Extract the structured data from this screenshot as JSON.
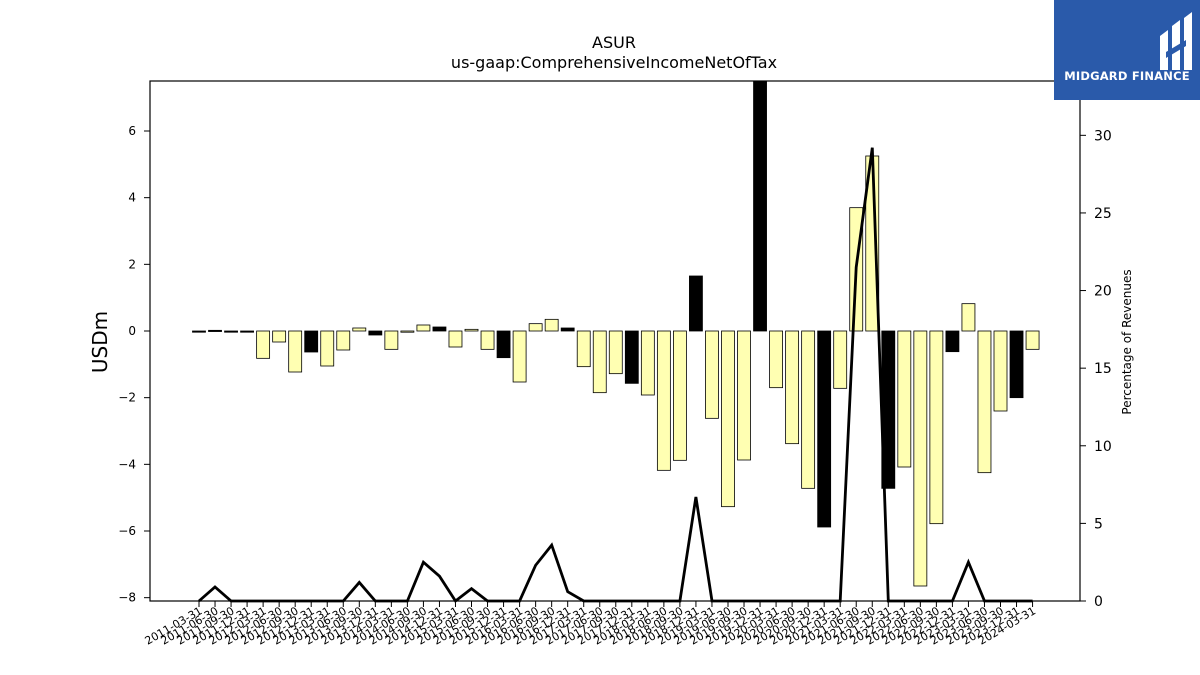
{
  "brand": {
    "name": "MIDGARD FINANCE",
    "color": "#2a5aaa"
  },
  "chart_data": {
    "type": "bar",
    "title": "ASUR",
    "subtitle": "us-gaap:ComprehensiveIncomeNetOfTax",
    "ylabel": "USDm",
    "y2label": "Percentage of Revenues",
    "ylim": [
      -8.1,
      7.5
    ],
    "y2lim": [
      0,
      33.5
    ],
    "yticks": [
      -8,
      -6,
      -4,
      -2,
      0,
      2,
      4,
      6
    ],
    "y2ticks": [
      0,
      5,
      10,
      15,
      20,
      25,
      30
    ],
    "grid": false,
    "colors": {
      "positive_year": "#ffffb2",
      "highlight": "#000000",
      "line": "#000000"
    },
    "categories": [
      "2011-03-31",
      "2011-06-30",
      "2011-09-30",
      "2011-12-31",
      "2012-03-31",
      "2012-06-30",
      "2012-09-30",
      "2012-12-31",
      "2013-03-31",
      "2013-06-30",
      "2013-09-30",
      "2013-12-31",
      "2014-03-31",
      "2014-06-30",
      "2014-09-30",
      "2014-12-31",
      "2015-03-31",
      "2015-06-30",
      "2015-09-30",
      "2015-12-31",
      "2016-03-31",
      "2016-06-30",
      "2016-09-30",
      "2016-12-31",
      "2017-03-31",
      "2017-06-30",
      "2017-09-30",
      "2017-12-31",
      "2018-03-31",
      "2018-06-30",
      "2018-09-30",
      "2018-12-31",
      "2019-03-31",
      "2019-06-30",
      "2019-09-30",
      "2019-12-31",
      "2020-03-31",
      "2020-06-30",
      "2020-09-30",
      "2020-12-31",
      "2021-03-31",
      "2021-06-30",
      "2021-09-30",
      "2021-12-31",
      "2022-03-31",
      "2022-06-30",
      "2022-09-30",
      "2022-12-31",
      "2023-03-31",
      "2023-06-30",
      "2023-09-30",
      "2023-12-31",
      "2024-03-31"
    ],
    "series": [
      {
        "role": "bars",
        "values": [
          -0.03,
          0.02,
          -0.03,
          -0.03,
          -0.82,
          -0.33,
          -1.23,
          -0.63,
          -1.05,
          -0.57,
          0.09,
          -0.12,
          -0.55,
          0.0,
          0.18,
          0.12,
          -0.48,
          0.05,
          -0.55,
          -0.8,
          -1.53,
          0.22,
          0.35,
          0.09,
          -1.07,
          -1.85,
          -1.28,
          -1.57,
          -1.92,
          -4.18,
          -3.88,
          1.65,
          -2.62,
          -5.27,
          -3.87,
          7.6,
          -1.7,
          -3.38,
          -4.72,
          -5.88,
          -1.72,
          3.7,
          5.25,
          -4.72,
          -4.08,
          -7.65,
          -5.78,
          -0.62,
          0.82,
          -4.25,
          -2.4,
          -2.0,
          -0.55
        ],
        "highlight": [
          true,
          true,
          true,
          true,
          false,
          false,
          false,
          true,
          false,
          false,
          false,
          true,
          false,
          false,
          false,
          true,
          false,
          false,
          false,
          true,
          false,
          false,
          false,
          true,
          false,
          false,
          false,
          true,
          false,
          false,
          false,
          true,
          false,
          false,
          false,
          true,
          false,
          false,
          false,
          true,
          false,
          false,
          false,
          true,
          false,
          false,
          false,
          true,
          false,
          false,
          false,
          true,
          false
        ]
      },
      {
        "role": "line",
        "values": [
          0,
          0.9,
          0,
          0,
          0,
          0,
          0,
          0,
          0,
          0,
          1.2,
          0,
          0,
          0,
          2.5,
          1.6,
          0,
          0.8,
          0,
          0,
          0,
          2.3,
          3.6,
          0.6,
          0,
          0,
          0,
          0,
          0,
          0,
          0,
          6.7,
          0,
          0,
          0,
          0,
          0,
          0,
          0,
          0,
          0,
          21.5,
          29.2,
          0,
          0,
          0,
          0,
          0,
          2.5,
          0,
          0,
          0,
          0
        ]
      }
    ]
  }
}
